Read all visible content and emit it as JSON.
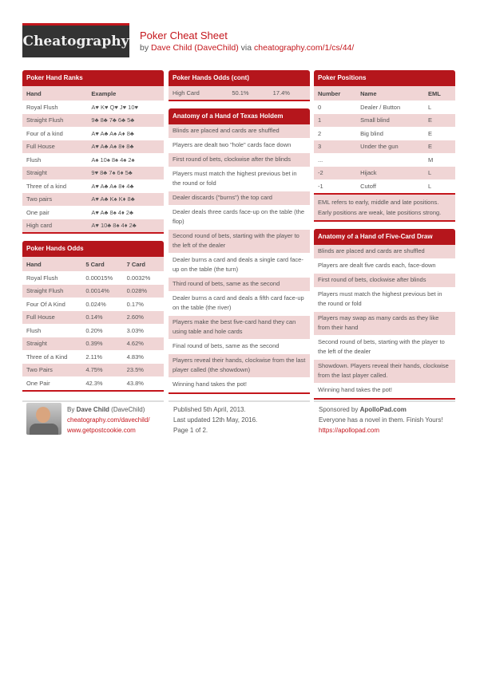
{
  "header": {
    "logo": "Cheatography",
    "title": "Poker Cheat Sheet",
    "by": "by",
    "author": "Dave Child (DaveChild)",
    "via": "via",
    "url": "cheatography.com/1/cs/44/"
  },
  "hand_ranks": {
    "title": "Poker Hand Ranks",
    "headers": [
      "Hand",
      "Example"
    ],
    "rows": [
      [
        "Royal Flush",
        "A♥ K♥ Q♥ J♥ 10♥"
      ],
      [
        "Straight Flush",
        "9♣ 8♣ 7♣ 6♣ 5♣"
      ],
      [
        "Four of a kind",
        "A♥ A♣ A♠ A♦ 8♣"
      ],
      [
        "Full House",
        "A♥ A♣ A♠ 8♦ 8♣"
      ],
      [
        "Flush",
        "A♠ 10♠ 8♠ 4♠ 2♠"
      ],
      [
        "Straight",
        "9♥ 8♣ 7♠ 6♦ 5♣"
      ],
      [
        "Three of a kind",
        "A♥ A♣ A♠ 8♦ 4♣"
      ],
      [
        "Two pairs",
        "A♥ A♣ K♠ K♦ 8♣"
      ],
      [
        "One pair",
        "A♥ A♣ 8♠ 4♦ 2♣"
      ],
      [
        "High card",
        "A♥ 10♣ 8♠ 4♦ 2♣"
      ]
    ]
  },
  "hands_odds": {
    "title": "Poker Hands Odds",
    "headers": [
      "Hand",
      "5 Card",
      "7 Card"
    ],
    "rows": [
      [
        "Royal Flush",
        "0.00015%",
        "0.0032%"
      ],
      [
        "Straight Flush",
        "0.0014%",
        "0.028%"
      ],
      [
        "Four Of A Kind",
        "0.024%",
        "0.17%"
      ],
      [
        "Full House",
        "0.14%",
        "2.60%"
      ],
      [
        "Flush",
        "0.20%",
        "3.03%"
      ],
      [
        "Straight",
        "0.39%",
        "4.62%"
      ],
      [
        "Three of a Kind",
        "2.11%",
        "4.83%"
      ],
      [
        "Two Pairs",
        "4.75%",
        "23.5%"
      ],
      [
        "One Pair",
        "42.3%",
        "43.8%"
      ]
    ]
  },
  "hands_odds_cont": {
    "title": "Poker Hands Odds (cont)",
    "rows": [
      [
        "High Card",
        "50.1%",
        "17.4%"
      ]
    ]
  },
  "texas": {
    "title": "Anatomy of a Hand of Texas Holdem",
    "items": [
      "Blinds are placed and cards are shuffled",
      "Players are dealt two \"hole\" cards face down",
      "First round of bets, clockwise after the blinds",
      "Players must match the highest previous bet in the round or fold",
      "Dealer discards (\"burns\") the top card",
      "Dealer deals three cards face-up on the table (the flop)",
      "Second round of bets, starting with the player to the left of the dealer",
      "Dealer burns a card and deals a single card face-up on the table (the turn)",
      "Third round of bets, same as the second",
      "Dealer burns a card and deals a fifth card face-up on the table (the river)",
      "Players make the best five-card hand they can using table and hole cards",
      "Final round of bets, same as the second",
      "Players reveal their hands, clockwise from the last player called (the showdown)",
      "Winning hand takes the pot!"
    ]
  },
  "positions": {
    "title": "Poker Positions",
    "headers": [
      "Number",
      "Name",
      "EML"
    ],
    "rows": [
      [
        "0",
        "Dealer / Button",
        "L"
      ],
      [
        "1",
        "Small blind",
        "E"
      ],
      [
        "2",
        "Big blind",
        "E"
      ],
      [
        "3",
        "Under the gun",
        "E"
      ],
      [
        "...",
        "",
        "M"
      ],
      [
        "-2",
        "Hijack",
        "L"
      ],
      [
        "-1",
        "Cutoff",
        "L"
      ]
    ],
    "note": "EML refers to early, middle and late positions. Early positions are weak, late positions strong."
  },
  "draw": {
    "title": "Anatomy of a Hand of Five-Card Draw",
    "items": [
      "Blinds are placed and cards are shuffled",
      "Players are dealt five cards each, face-down",
      "First round of bets, clockwise after blinds",
      "Players must match the highest previous bet in the round or fold",
      "Players may swap as many cards as they like from their hand",
      "Second round of bets, starting with the player to the left of the dealer",
      "Showdown. Players reveal their hands, clockwise from the last player called.",
      "Winning hand takes the pot!"
    ]
  },
  "footer": {
    "by": "By",
    "author": "Dave Child",
    "handle": "(DaveChild)",
    "link1": "cheatography.com/davechild/",
    "link2": "www.getpostcookie.com",
    "published": "Published 5th April, 2013.",
    "updated": "Last updated 12th May, 2016.",
    "page": "Page 1 of 2.",
    "sponsored": "Sponsored by",
    "sponsor": "ApolloPad.com",
    "tagline": "Everyone has a novel in them. Finish Yours!",
    "sponsor_url": "https://apollopad.com"
  }
}
